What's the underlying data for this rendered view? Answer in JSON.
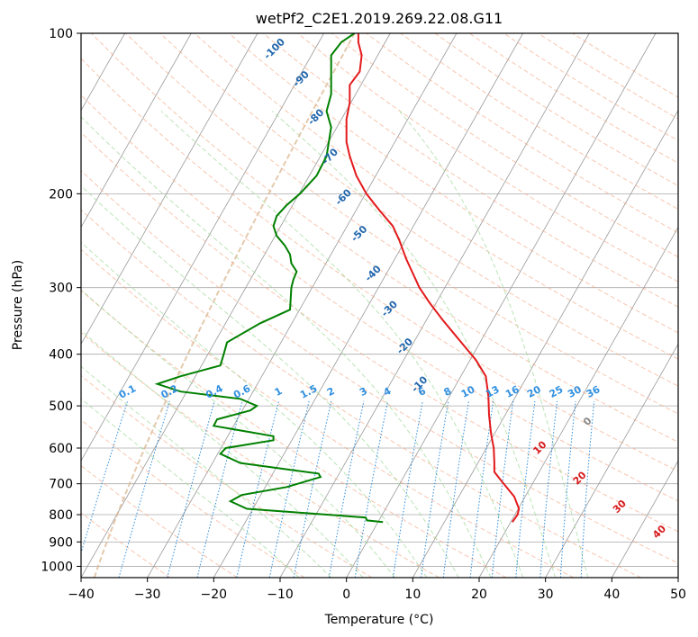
{
  "chart_data": {
    "type": "line",
    "title": "wetPf2_C2E1.2019.269.22.08.G11",
    "xlabel": "Temperature (°C)",
    "ylabel": "Pressure (hPa)",
    "xlim": [
      -40,
      50
    ],
    "ylim": [
      1050,
      100
    ],
    "y_scale": "log",
    "x_ticks": [
      -40,
      -30,
      -20,
      -10,
      0,
      10,
      20,
      30,
      40,
      50
    ],
    "y_ticks": [
      100,
      200,
      300,
      400,
      500,
      600,
      700,
      800,
      900,
      1000
    ],
    "grid": true,
    "series": [
      {
        "role": "temperature",
        "color": "#e31a1c",
        "points": [
          [
            25.0,
            826
          ],
          [
            25.8,
            800
          ],
          [
            26.0,
            780
          ],
          [
            25.3,
            740
          ],
          [
            23.3,
            690
          ],
          [
            22.3,
            665
          ],
          [
            22.3,
            640
          ],
          [
            22.2,
            600
          ],
          [
            21.8,
            565
          ],
          [
            21.5,
            520
          ],
          [
            21.4,
            480
          ],
          [
            21.0,
            440
          ],
          [
            19.5,
            410
          ],
          [
            17.3,
            380
          ],
          [
            14.5,
            345
          ],
          [
            12.5,
            320
          ],
          [
            11.0,
            300
          ],
          [
            9.0,
            265
          ],
          [
            8.0,
            245
          ],
          [
            7.0,
            230
          ],
          [
            5.0,
            215
          ],
          [
            3.0,
            200
          ],
          [
            1.5,
            185
          ],
          [
            0.5,
            170
          ],
          [
            0.0,
            160
          ],
          [
            0.0,
            145
          ],
          [
            0.5,
            135
          ],
          [
            0.5,
            125
          ],
          [
            2.0,
            118
          ],
          [
            2.3,
            110
          ],
          [
            1.8,
            104
          ],
          [
            1.8,
            100
          ]
        ]
      },
      {
        "role": "dewpoint",
        "color": "#008000",
        "points": [
          [
            5.5,
            826
          ],
          [
            3.1,
            820
          ],
          [
            2.9,
            810
          ],
          [
            -15.0,
            780
          ],
          [
            -17.5,
            755
          ],
          [
            -15.8,
            735
          ],
          [
            -9.0,
            710
          ],
          [
            -3.9,
            680
          ],
          [
            -4.2,
            670
          ],
          [
            -10.0,
            655
          ],
          [
            -16.0,
            640
          ],
          [
            -19.0,
            615
          ],
          [
            -18.2,
            600
          ],
          [
            -11.0,
            580
          ],
          [
            -11.0,
            570
          ],
          [
            -20.0,
            545
          ],
          [
            -19.5,
            530
          ],
          [
            -14.5,
            510
          ],
          [
            -13.5,
            500
          ],
          [
            -16.0,
            485
          ],
          [
            -25.0,
            470
          ],
          [
            -28.5,
            455
          ],
          [
            -25.0,
            440
          ],
          [
            -19.0,
            420
          ],
          [
            -18.5,
            400
          ],
          [
            -18.0,
            380
          ],
          [
            -13.0,
            350
          ],
          [
            -8.5,
            330
          ],
          [
            -8.3,
            300
          ],
          [
            -8.0,
            290
          ],
          [
            -7.5,
            280
          ],
          [
            -8.3,
            270
          ],
          [
            -8.5,
            260
          ],
          [
            -9.3,
            250
          ],
          [
            -10.5,
            240
          ],
          [
            -11.0,
            230
          ],
          [
            -10.5,
            220
          ],
          [
            -9.0,
            210
          ],
          [
            -7.0,
            200
          ],
          [
            -4.5,
            185
          ],
          [
            -3.0,
            170
          ],
          [
            -2.3,
            150
          ],
          [
            -3.0,
            140
          ],
          [
            -2.3,
            130
          ],
          [
            -2.3,
            120
          ],
          [
            -2.3,
            110
          ],
          [
            -0.8,
            104
          ],
          [
            1.2,
            100
          ]
        ]
      }
    ],
    "dry_adiabat_labels": [
      "-100",
      "-90",
      "-80",
      "-70",
      "-60",
      "-50",
      "-40",
      "-30",
      "-20",
      "-10"
    ],
    "dry_adiabat_label_zero": "0",
    "moist_adiabat_labels": [
      "10",
      "20",
      "30",
      "40"
    ],
    "mixing_ratio_labels": [
      "0.1",
      "0.2",
      "0.4",
      "0.6",
      "1",
      "1.5",
      "2",
      "3",
      "4",
      "6",
      "8",
      "10",
      "13",
      "16",
      "20",
      "25",
      "30",
      "36"
    ],
    "colors": {
      "isotherm": "#999999",
      "isobar": "#aaaaaa",
      "dry_adiabat": "#f4a582",
      "moist_adiabat": "#a1d99b",
      "mixing_ratio": "#2b8cdc",
      "dry_label": "#2166ac",
      "moist_label": "#d7191c",
      "mixing_label": "#3090e0",
      "ice_curve": "#d9b38c"
    }
  }
}
